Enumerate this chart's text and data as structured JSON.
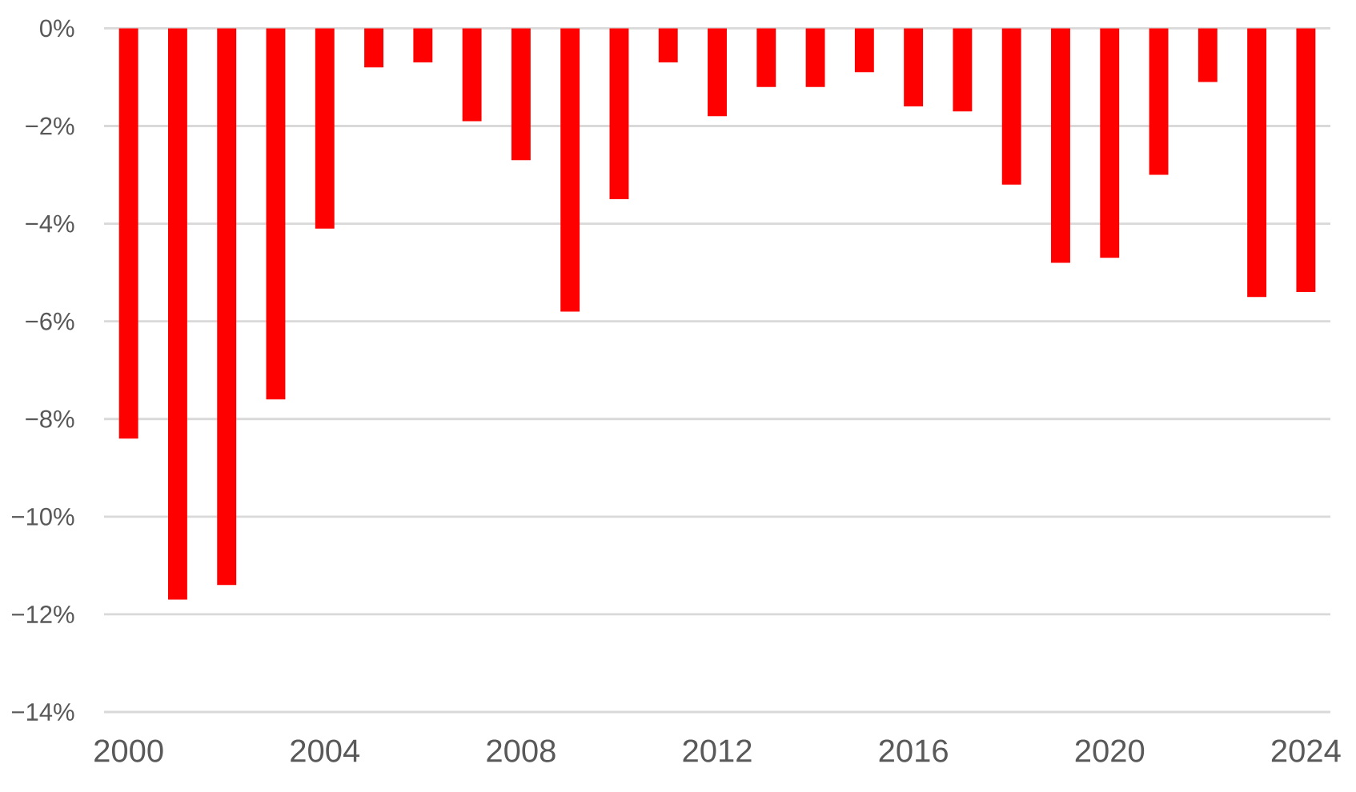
{
  "chart_data": {
    "type": "bar",
    "x": [
      2000,
      2001,
      2002,
      2003,
      2004,
      2005,
      2006,
      2007,
      2008,
      2009,
      2010,
      2011,
      2012,
      2013,
      2014,
      2015,
      2016,
      2017,
      2018,
      2019,
      2020,
      2021,
      2022,
      2023,
      2024
    ],
    "values": [
      -8.4,
      -11.7,
      -11.4,
      -7.6,
      -4.1,
      -0.8,
      -0.7,
      -1.9,
      -2.7,
      -5.8,
      -3.5,
      -0.7,
      -1.8,
      -1.2,
      -1.2,
      -0.9,
      -1.6,
      -1.7,
      -3.2,
      -4.8,
      -4.7,
      -3.0,
      -1.1,
      -5.5,
      -5.4
    ],
    "color": "#ff0000",
    "xlim": [
      1999.5,
      2024.5
    ],
    "xticks": [
      2000,
      2004,
      2008,
      2012,
      2016,
      2020,
      2024
    ],
    "ylim": [
      -14,
      0
    ],
    "yticks": [
      {
        "value": 0,
        "label": "0%"
      },
      {
        "value": -2,
        "label": "−2%"
      },
      {
        "value": -4,
        "label": "−4%"
      },
      {
        "value": -6,
        "label": "−6%"
      },
      {
        "value": -8,
        "label": "−8%"
      },
      {
        "value": -10,
        "label": "−10%"
      },
      {
        "value": -12,
        "label": "−12%"
      },
      {
        "value": -14,
        "label": "−14%"
      }
    ],
    "grid": "y"
  }
}
